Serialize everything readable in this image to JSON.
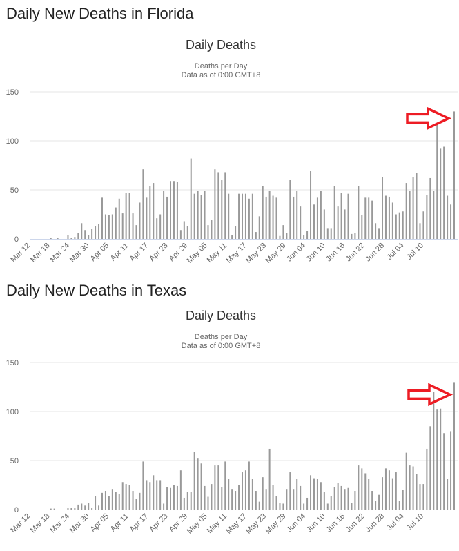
{
  "chart_data": [
    {
      "heading": "Daily New Deaths in Florida",
      "type": "bar",
      "title": "Daily Deaths",
      "subtitle": "Deaths per Day",
      "subtitle2": "Data as of 0:00 GMT+8",
      "ylim": [
        0,
        150
      ],
      "y_ticks": [
        "0",
        "50",
        "100",
        "150"
      ],
      "x_tick_labels": [
        "Mar 12",
        "Mar 18",
        "Mar 24",
        "Mar 30",
        "Apr 05",
        "Apr 11",
        "Apr 17",
        "Apr 23",
        "Apr 29",
        "May 05",
        "May 11",
        "May 17",
        "May 23",
        "May 29",
        "Jun 04",
        "Jun 10",
        "Jun 16",
        "Jun 22",
        "Jun 28",
        "Jul 04",
        "Jul 10"
      ],
      "values": [
        0,
        0,
        0,
        0,
        0,
        0,
        1,
        0,
        1,
        0,
        0,
        4,
        1,
        2,
        6,
        16,
        9,
        4,
        10,
        13,
        15,
        42,
        25,
        24,
        25,
        32,
        41,
        26,
        47,
        47,
        26,
        14,
        37,
        71,
        42,
        54,
        57,
        21,
        25,
        49,
        43,
        59,
        59,
        58,
        9,
        18,
        13,
        82,
        46,
        49,
        45,
        49,
        14,
        19,
        71,
        68,
        60,
        68,
        46,
        4,
        13,
        46,
        46,
        46,
        41,
        46,
        7,
        23,
        54,
        43,
        49,
        44,
        42,
        3,
        14,
        6,
        60,
        43,
        49,
        33,
        4,
        8,
        69,
        35,
        42,
        49,
        30,
        11,
        11,
        54,
        33,
        47,
        30,
        46,
        5,
        6,
        54,
        24,
        42,
        42,
        39,
        16,
        11,
        63,
        44,
        43,
        37,
        25,
        27,
        28,
        57,
        49,
        63,
        67,
        16,
        28,
        45,
        62,
        49,
        118,
        92,
        94,
        44,
        35,
        130
      ],
      "bar_color": "#999999",
      "annotation": "red-arrow pointing to last bar"
    },
    {
      "heading": "Daily New Deaths in Texas",
      "type": "bar",
      "title": "Daily Deaths",
      "subtitle": "Deaths per Day",
      "subtitle2": "Data as of 0:00 GMT+8",
      "ylim": [
        0,
        150
      ],
      "y_ticks": [
        "0",
        "50",
        "100",
        "150"
      ],
      "x_tick_labels": [
        "Mar 12",
        "Mar 18",
        "Mar 24",
        "Mar 30",
        "Apr 05",
        "Apr 11",
        "Apr 17",
        "Apr 23",
        "Apr 29",
        "May 05",
        "May 11",
        "May 17",
        "May 23",
        "May 29",
        "Jun 04",
        "Jun 10",
        "Jun 16",
        "Jun 22",
        "Jun 28",
        "Jul 04",
        "Jul 10"
      ],
      "values": [
        0,
        0,
        0,
        0,
        0,
        0,
        1,
        1,
        0,
        0,
        0,
        2,
        2,
        2,
        5,
        6,
        4,
        7,
        2,
        14,
        4,
        17,
        19,
        14,
        21,
        18,
        16,
        28,
        26,
        25,
        19,
        11,
        17,
        49,
        30,
        28,
        35,
        30,
        30,
        6,
        23,
        22,
        25,
        24,
        40,
        12,
        18,
        18,
        59,
        52,
        47,
        24,
        13,
        26,
        45,
        45,
        23,
        49,
        31,
        21,
        19,
        25,
        38,
        40,
        49,
        31,
        19,
        8,
        33,
        21,
        62,
        25,
        14,
        7,
        6,
        21,
        38,
        21,
        31,
        24,
        6,
        12,
        35,
        32,
        31,
        28,
        18,
        6,
        14,
        23,
        27,
        24,
        21,
        22,
        7,
        19,
        45,
        42,
        37,
        31,
        19,
        9,
        15,
        33,
        42,
        40,
        32,
        38,
        9,
        20,
        58,
        45,
        44,
        36,
        26,
        26,
        62,
        85,
        120,
        102,
        103,
        78,
        31,
        80,
        130
      ],
      "bar_color": "#999999",
      "annotation": "red-arrow pointing to last bar"
    }
  ],
  "colors": {
    "arrow": "#ed1c24",
    "grid": "#e6e6e6",
    "axis": "#ccd6eb"
  }
}
